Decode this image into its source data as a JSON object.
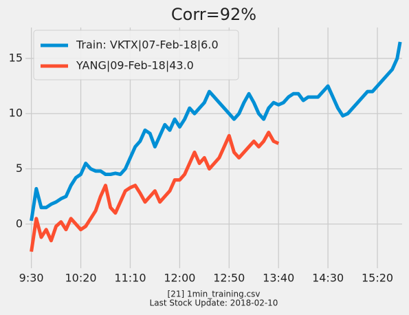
{
  "chart_data": {
    "type": "line",
    "title": "Corr=92%",
    "series": [
      {
        "name": "Train: VKTX|07-Feb-18|6.0",
        "color": "#008fd5",
        "x": [
          570,
          575,
          580,
          585,
          590,
          595,
          600,
          605,
          610,
          615,
          620,
          625,
          630,
          635,
          640,
          645,
          650,
          655,
          660,
          665,
          670,
          675,
          680,
          685,
          690,
          695,
          700,
          705,
          710,
          715,
          720,
          725,
          730,
          735,
          740,
          745,
          750,
          755,
          760,
          765,
          770,
          775,
          780,
          785,
          790,
          795,
          800,
          805,
          810,
          815,
          820,
          825,
          830,
          835,
          840,
          845,
          850,
          855,
          860,
          865,
          870,
          875,
          880,
          885,
          890,
          895,
          900,
          905,
          910,
          915,
          920,
          925,
          930,
          935,
          940,
          943
        ],
        "values": [
          0.3,
          3.2,
          1.5,
          1.5,
          1.8,
          2.0,
          2.3,
          2.5,
          3.5,
          4.2,
          4.5,
          5.5,
          5.0,
          4.8,
          4.8,
          4.5,
          4.5,
          4.6,
          4.5,
          5.0,
          6.0,
          7.0,
          7.5,
          8.5,
          8.2,
          7.0,
          8.0,
          9.0,
          8.5,
          9.5,
          8.8,
          9.5,
          10.5,
          10.0,
          10.5,
          11.0,
          12.0,
          11.5,
          11.0,
          10.5,
          10.0,
          9.5,
          10.0,
          11.0,
          11.8,
          11.0,
          10.0,
          9.5,
          10.5,
          11.0,
          10.8,
          11.0,
          11.5,
          11.8,
          11.8,
          11.2,
          11.5,
          11.5,
          11.5,
          12.0,
          12.5,
          11.5,
          10.5,
          9.8,
          10.0,
          10.5,
          11.0,
          11.5,
          12.0,
          12.0,
          12.5,
          13.0,
          13.5,
          14.0,
          15.0,
          16.5
        ]
      },
      {
        "name": "YANG|09-Feb-18|43.0",
        "color": "#fc4f30",
        "x": [
          570,
          575,
          580,
          585,
          590,
          595,
          600,
          605,
          610,
          615,
          620,
          625,
          630,
          635,
          640,
          645,
          650,
          655,
          660,
          665,
          670,
          675,
          680,
          685,
          690,
          695,
          700,
          705,
          710,
          715,
          720,
          725,
          730,
          735,
          740,
          745,
          750,
          755,
          760,
          765,
          770,
          775,
          780,
          785,
          790,
          795,
          800,
          805,
          810,
          815,
          820
        ],
        "values": [
          -2.5,
          0.5,
          -1.2,
          -0.5,
          -1.5,
          -0.2,
          0.2,
          -0.5,
          0.5,
          0.0,
          -0.5,
          -0.2,
          0.5,
          1.2,
          2.5,
          3.5,
          1.5,
          1.0,
          2.0,
          3.0,
          3.3,
          3.5,
          2.8,
          2.0,
          2.5,
          3.0,
          2.0,
          2.5,
          3.0,
          4.0,
          4.0,
          4.5,
          5.5,
          6.5,
          5.5,
          6.0,
          5.0,
          5.5,
          6.0,
          7.0,
          8.0,
          6.5,
          6.0,
          6.5,
          7.0,
          7.5,
          7.0,
          7.5,
          8.3,
          7.5,
          7.3
        ]
      }
    ],
    "xlim": [
      564,
      945
    ],
    "xticks": [
      {
        "value": 570,
        "label": "9:30"
      },
      {
        "value": 620,
        "label": "10:20"
      },
      {
        "value": 670,
        "label": "11:10"
      },
      {
        "value": 720,
        "label": "12:00"
      },
      {
        "value": 770,
        "label": "12:50"
      },
      {
        "value": 820,
        "label": "13:40"
      },
      {
        "value": 870,
        "label": "14:30"
      },
      {
        "value": 920,
        "label": "15:20"
      }
    ],
    "ylim": [
      -4,
      17.8
    ],
    "yticks": [
      0,
      5,
      10,
      15
    ],
    "grid": true,
    "legend": "upper-left",
    "footer": [
      "[21] 1min_training.csv",
      "Last Stock Update: 2018-02-10"
    ]
  }
}
